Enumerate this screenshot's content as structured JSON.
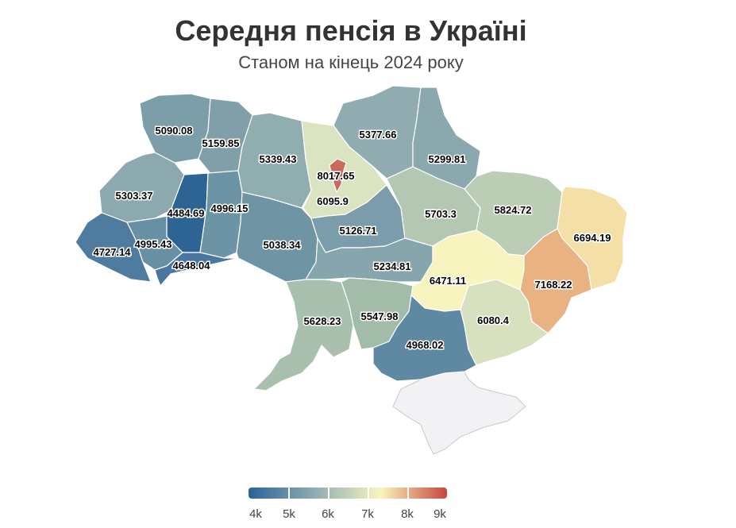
{
  "header": {
    "title": "Середня пенсія в Україні",
    "subtitle": "Станом на кінець 2024 року"
  },
  "regions": [
    {
      "id": "volyn",
      "value": "5090.08",
      "color": "#7b9ea9"
    },
    {
      "id": "rivne",
      "value": "5159.85",
      "color": "#819fa9"
    },
    {
      "id": "zhytomyr",
      "value": "5339.43",
      "color": "#90aeb0"
    },
    {
      "id": "kyiv-oblast",
      "value": "6095.9",
      "color": "#dbe4c0"
    },
    {
      "id": "kyiv-city",
      "value": "8017.65",
      "color": "#c86a5c"
    },
    {
      "id": "chernihiv",
      "value": "5377.66",
      "color": "#90acb0"
    },
    {
      "id": "sumy",
      "value": "5299.81",
      "color": "#8aa8ad"
    },
    {
      "id": "lviv",
      "value": "5303.37",
      "color": "#8ba9ae"
    },
    {
      "id": "ternopil",
      "value": "4484.69",
      "color": "#2d6494"
    },
    {
      "id": "khmelnytskyi",
      "value": "4996.15",
      "color": "#6d94a4"
    },
    {
      "id": "zakarpattia",
      "value": "4727.14",
      "color": "#4e7b9e"
    },
    {
      "id": "ivano-frankivsk",
      "value": "4995.43",
      "color": "#6890a5"
    },
    {
      "id": "chernivtsi",
      "value": "4648.04",
      "color": "#4a77a0"
    },
    {
      "id": "vinnytsia",
      "value": "5038.34",
      "color": "#6f95a5"
    },
    {
      "id": "cherkasy",
      "value": "5126.71",
      "color": "#7a9cab"
    },
    {
      "id": "poltava",
      "value": "5703.3",
      "color": "#b3c7b2"
    },
    {
      "id": "kharkiv",
      "value": "5824.72",
      "color": "#bccdb5"
    },
    {
      "id": "luhansk",
      "value": "6694.19",
      "color": "#f4e0a6"
    },
    {
      "id": "kirovohrad",
      "value": "5234.81",
      "color": "#86a5ad"
    },
    {
      "id": "dnipro",
      "value": "6471.11",
      "color": "#f8f4c0"
    },
    {
      "id": "donetsk",
      "value": "7168.22",
      "color": "#e9b283"
    },
    {
      "id": "odesa",
      "value": "5628.23",
      "color": "#a8c0ad"
    },
    {
      "id": "mykolaiv",
      "value": "5547.98",
      "color": "#a3bcaa"
    },
    {
      "id": "kherson",
      "value": "4968.02",
      "color": "#5f89a2"
    },
    {
      "id": "zaporizhzhia",
      "value": "6080.4",
      "color": "#d7e1bf"
    }
  ],
  "legend": {
    "labels": [
      "4k",
      "5k",
      "6k",
      "7k",
      "8k",
      "9k"
    ],
    "colors": [
      "#2a6296",
      "#8fadb2",
      "#f9f4bd",
      "#c7473c"
    ]
  }
}
